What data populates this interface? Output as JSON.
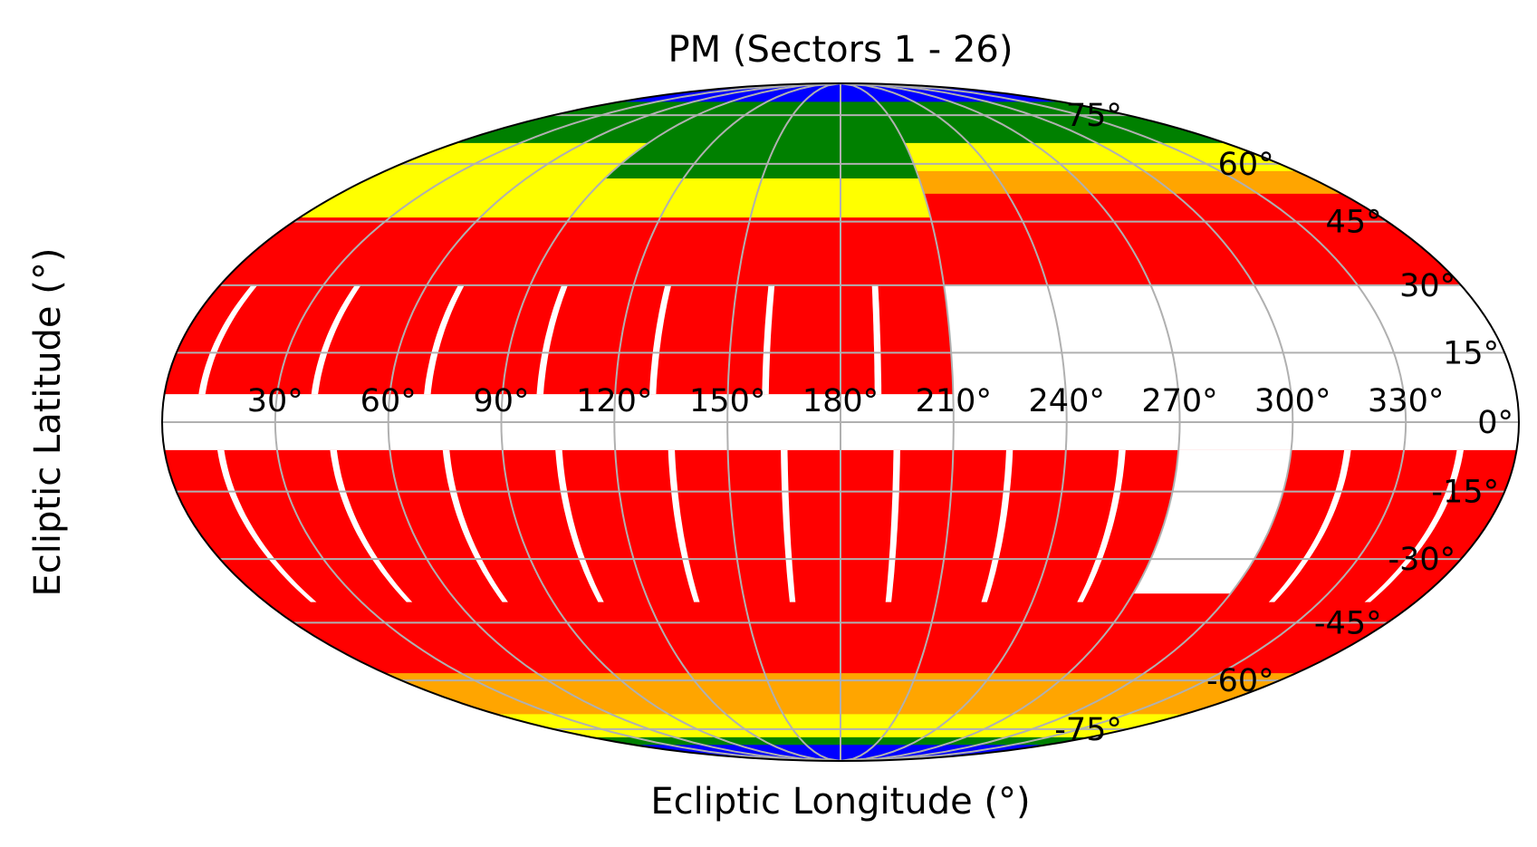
{
  "chart_data": {
    "type": "heatmap",
    "projection": "mollweide",
    "title": "PM (Sectors 1 - 26)",
    "xlabel": "Ecliptic Longitude (°)",
    "ylabel": "Ecliptic Latitude (°)",
    "grid": true,
    "x_ticks": [
      "330°",
      "300°",
      "270°",
      "240°",
      "210°",
      "180°",
      "150°",
      "120°",
      "90°",
      "60°",
      "30°"
    ],
    "y_ticks": [
      "75°",
      "60°",
      "45°",
      "30°",
      "15°",
      "0°",
      "-15°",
      "-30°",
      "-45°",
      "-60°",
      "-75°"
    ],
    "colors": {
      "tier1": "#ff0000",
      "tier2": "#ffa500",
      "tier3": "#ffff00",
      "tier4": "#008000",
      "tier5": "#0000ff",
      "grid": "#b0b0b0",
      "background": "#ffffff"
    },
    "regions": {
      "south_sectors_lat": [
        -6,
        -90
      ],
      "north_sectors_lat": [
        6,
        90
      ],
      "north_gap_lon": [
        210,
        360
      ],
      "north_gap_lat_top": 30,
      "south_gap_lon": [
        270,
        300
      ]
    }
  }
}
